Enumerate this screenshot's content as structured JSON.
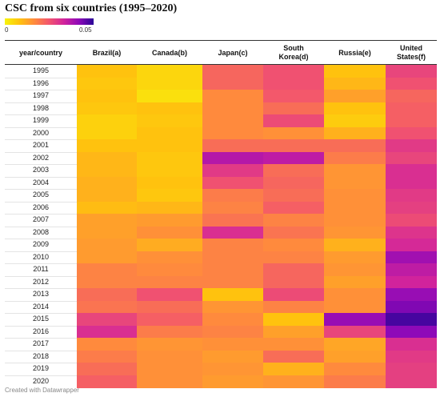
{
  "chart_data": {
    "type": "heatmap",
    "title": "CSC from six countries (1995–2020)",
    "legend": {
      "min_label": "0",
      "max_label": "0.05",
      "min": 0,
      "max": 0.05
    },
    "row_header": "year/country",
    "columns": [
      "Brazil(a)",
      "Canada(b)",
      "Japan(c)",
      "South Korea(d)",
      "Russia(e)",
      "United States(f)"
    ],
    "rows": [
      "1995",
      "1996",
      "1997",
      "1998",
      "1999",
      "2000",
      "2001",
      "2002",
      "2003",
      "2004",
      "2005",
      "2006",
      "2007",
      "2008",
      "2009",
      "2010",
      "2011",
      "2012",
      "2013",
      "2014",
      "2015",
      "2016",
      "2017",
      "2018",
      "2019",
      "2020"
    ],
    "values": [
      [
        0.01,
        0.006,
        0.025,
        0.028,
        0.01,
        0.03
      ],
      [
        0.009,
        0.006,
        0.025,
        0.028,
        0.012,
        0.028
      ],
      [
        0.01,
        0.004,
        0.02,
        0.027,
        0.016,
        0.025
      ],
      [
        0.009,
        0.01,
        0.02,
        0.024,
        0.01,
        0.026
      ],
      [
        0.007,
        0.009,
        0.02,
        0.029,
        0.008,
        0.026
      ],
      [
        0.007,
        0.01,
        0.02,
        0.019,
        0.013,
        0.028
      ],
      [
        0.01,
        0.01,
        0.024,
        0.024,
        0.024,
        0.032
      ],
      [
        0.012,
        0.009,
        0.039,
        0.038,
        0.022,
        0.03
      ],
      [
        0.012,
        0.009,
        0.032,
        0.024,
        0.018,
        0.034
      ],
      [
        0.013,
        0.01,
        0.028,
        0.025,
        0.018,
        0.034
      ],
      [
        0.013,
        0.009,
        0.022,
        0.024,
        0.019,
        0.032
      ],
      [
        0.011,
        0.012,
        0.021,
        0.026,
        0.019,
        0.031
      ],
      [
        0.016,
        0.017,
        0.023,
        0.021,
        0.019,
        0.029
      ],
      [
        0.016,
        0.019,
        0.034,
        0.023,
        0.018,
        0.033
      ],
      [
        0.017,
        0.014,
        0.021,
        0.02,
        0.013,
        0.035
      ],
      [
        0.017,
        0.019,
        0.021,
        0.021,
        0.017,
        0.041
      ],
      [
        0.021,
        0.02,
        0.021,
        0.025,
        0.018,
        0.038
      ],
      [
        0.021,
        0.021,
        0.021,
        0.025,
        0.016,
        0.036
      ],
      [
        0.024,
        0.028,
        0.01,
        0.029,
        0.019,
        0.042
      ],
      [
        0.023,
        0.024,
        0.018,
        0.021,
        0.019,
        0.044
      ],
      [
        0.03,
        0.026,
        0.02,
        0.01,
        0.042,
        0.048
      ],
      [
        0.034,
        0.022,
        0.021,
        0.016,
        0.03,
        0.043
      ],
      [
        0.02,
        0.018,
        0.019,
        0.019,
        0.015,
        0.034
      ],
      [
        0.022,
        0.019,
        0.017,
        0.024,
        0.016,
        0.032
      ],
      [
        0.024,
        0.019,
        0.018,
        0.013,
        0.02,
        0.031
      ],
      [
        0.026,
        0.019,
        0.017,
        0.018,
        0.022,
        0.031
      ]
    ]
  },
  "footer": {
    "credit": "Created with Datawrapper"
  }
}
